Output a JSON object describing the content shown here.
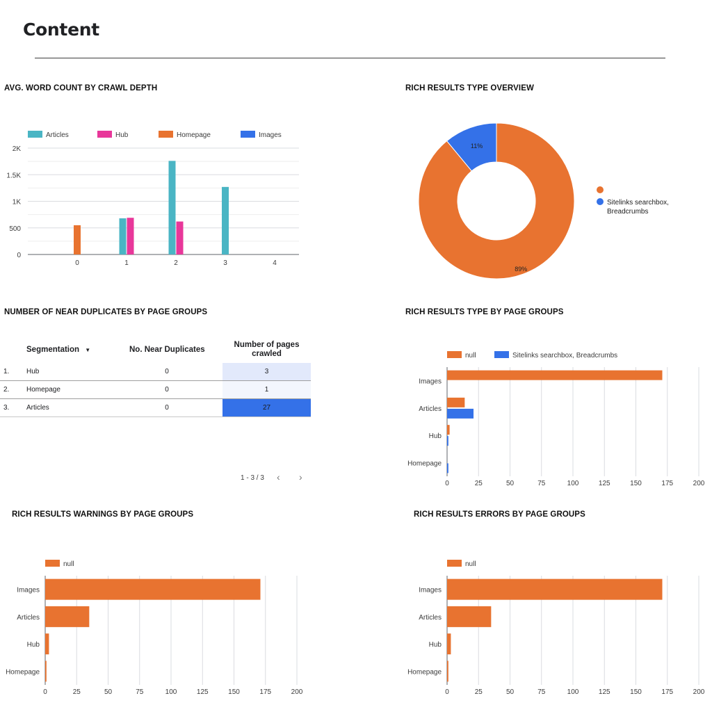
{
  "page": {
    "title": "Content"
  },
  "panels": {
    "word_count": "AVG. WORD COUNT BY CRAWL DEPTH",
    "rich_overview": "RICH RESULTS TYPE OVERVIEW",
    "near_dup": "NUMBER OF NEAR DUPLICATES BY PAGE GROUPS",
    "rich_type_groups": "RICH RESULTS TYPE BY PAGE GROUPS",
    "warnings": "RICH RESULTS WARNINGS BY PAGE GROUPS",
    "errors": "RICH RESULTS ERRORS BY PAGE GROUPS"
  },
  "colors": {
    "articles": "#4ab5c4",
    "hub": "#e8379a",
    "homepage": "#e87330",
    "images": "#3471e8",
    "null": "#e87330",
    "sitelinks": "#3471e8"
  },
  "near_dup_table": {
    "headers": [
      "Segmentation",
      "No. Near Duplicates",
      "Number of pages",
      "crawled"
    ],
    "sort_icon": "arrow-drop-down-icon",
    "rows": [
      {
        "num": "1.",
        "segment": "Hub",
        "dups": "0",
        "pages": "3"
      },
      {
        "num": "2.",
        "segment": "Homepage",
        "dups": "0",
        "pages": "1"
      },
      {
        "num": "3.",
        "segment": "Articles",
        "dups": "0",
        "pages": "27"
      }
    ],
    "pager": {
      "range": "1 - 3 / 3",
      "prev_icon": "chevron-left-icon",
      "next_icon": "chevron-right-icon"
    }
  },
  "chart_data": [
    {
      "id": "word_count",
      "type": "bar",
      "title": "AVG. WORD COUNT BY CRAWL DEPTH",
      "categories": [
        "0",
        "1",
        "2",
        "3",
        "4"
      ],
      "series": [
        {
          "name": "Articles",
          "values": [
            0,
            680,
            1760,
            1270,
            0
          ]
        },
        {
          "name": "Hub",
          "values": [
            0,
            690,
            620,
            0,
            0
          ]
        },
        {
          "name": "Homepage",
          "values": [
            550,
            0,
            0,
            0,
            0
          ]
        },
        {
          "name": "Images",
          "values": [
            0,
            0,
            0,
            0,
            0
          ]
        }
      ],
      "yticks": [
        "0",
        "500",
        "1K",
        "1.5K",
        "2K"
      ],
      "ylim": [
        0,
        2000
      ],
      "legend": "top-left",
      "grid": true
    },
    {
      "id": "rich_overview",
      "type": "pie",
      "title": "RICH RESULTS TYPE OVERVIEW",
      "donut": true,
      "slices": [
        {
          "name": "",
          "value": 89,
          "label": "89%"
        },
        {
          "name": "Sitelinks searchbox, Breadcrumbs",
          "value": 11,
          "label": "11%"
        }
      ],
      "legend_lines": [
        "Sitelinks searchbox,",
        "Breadcrumbs"
      ],
      "legend": "right"
    },
    {
      "id": "rich_type_groups",
      "type": "bar",
      "orientation": "horizontal",
      "title": "RICH RESULTS TYPE BY PAGE GROUPS",
      "categories": [
        "Images",
        "Articles",
        "Hub",
        "Homepage"
      ],
      "series": [
        {
          "name": "null",
          "values": [
            171,
            14,
            2,
            0
          ]
        },
        {
          "name": "Sitelinks searchbox, Breadcrumbs",
          "values": [
            0,
            21,
            1,
            1
          ]
        }
      ],
      "xticks": [
        "0",
        "25",
        "50",
        "75",
        "100",
        "125",
        "150",
        "175",
        "200"
      ],
      "xlim": [
        0,
        200
      ],
      "legend": "top-left",
      "grid": true
    },
    {
      "id": "warnings",
      "type": "bar",
      "orientation": "horizontal",
      "title": "RICH RESULTS WARNINGS BY PAGE GROUPS",
      "categories": [
        "Images",
        "Articles",
        "Hub",
        "Homepage"
      ],
      "series": [
        {
          "name": "null",
          "values": [
            171,
            35,
            3,
            1
          ]
        }
      ],
      "xticks": [
        "0",
        "25",
        "50",
        "75",
        "100",
        "125",
        "150",
        "175",
        "200"
      ],
      "xlim": [
        0,
        200
      ],
      "legend": "top-left",
      "grid": true
    },
    {
      "id": "errors",
      "type": "bar",
      "orientation": "horizontal",
      "title": "RICH RESULTS ERRORS BY PAGE GROUPS",
      "categories": [
        "Images",
        "Articles",
        "Hub",
        "Homepage"
      ],
      "series": [
        {
          "name": "null",
          "values": [
            171,
            35,
            3,
            1
          ]
        }
      ],
      "xticks": [
        "0",
        "25",
        "50",
        "75",
        "100",
        "125",
        "150",
        "175",
        "200"
      ],
      "xlim": [
        0,
        200
      ],
      "legend": "top-left",
      "grid": true
    }
  ]
}
